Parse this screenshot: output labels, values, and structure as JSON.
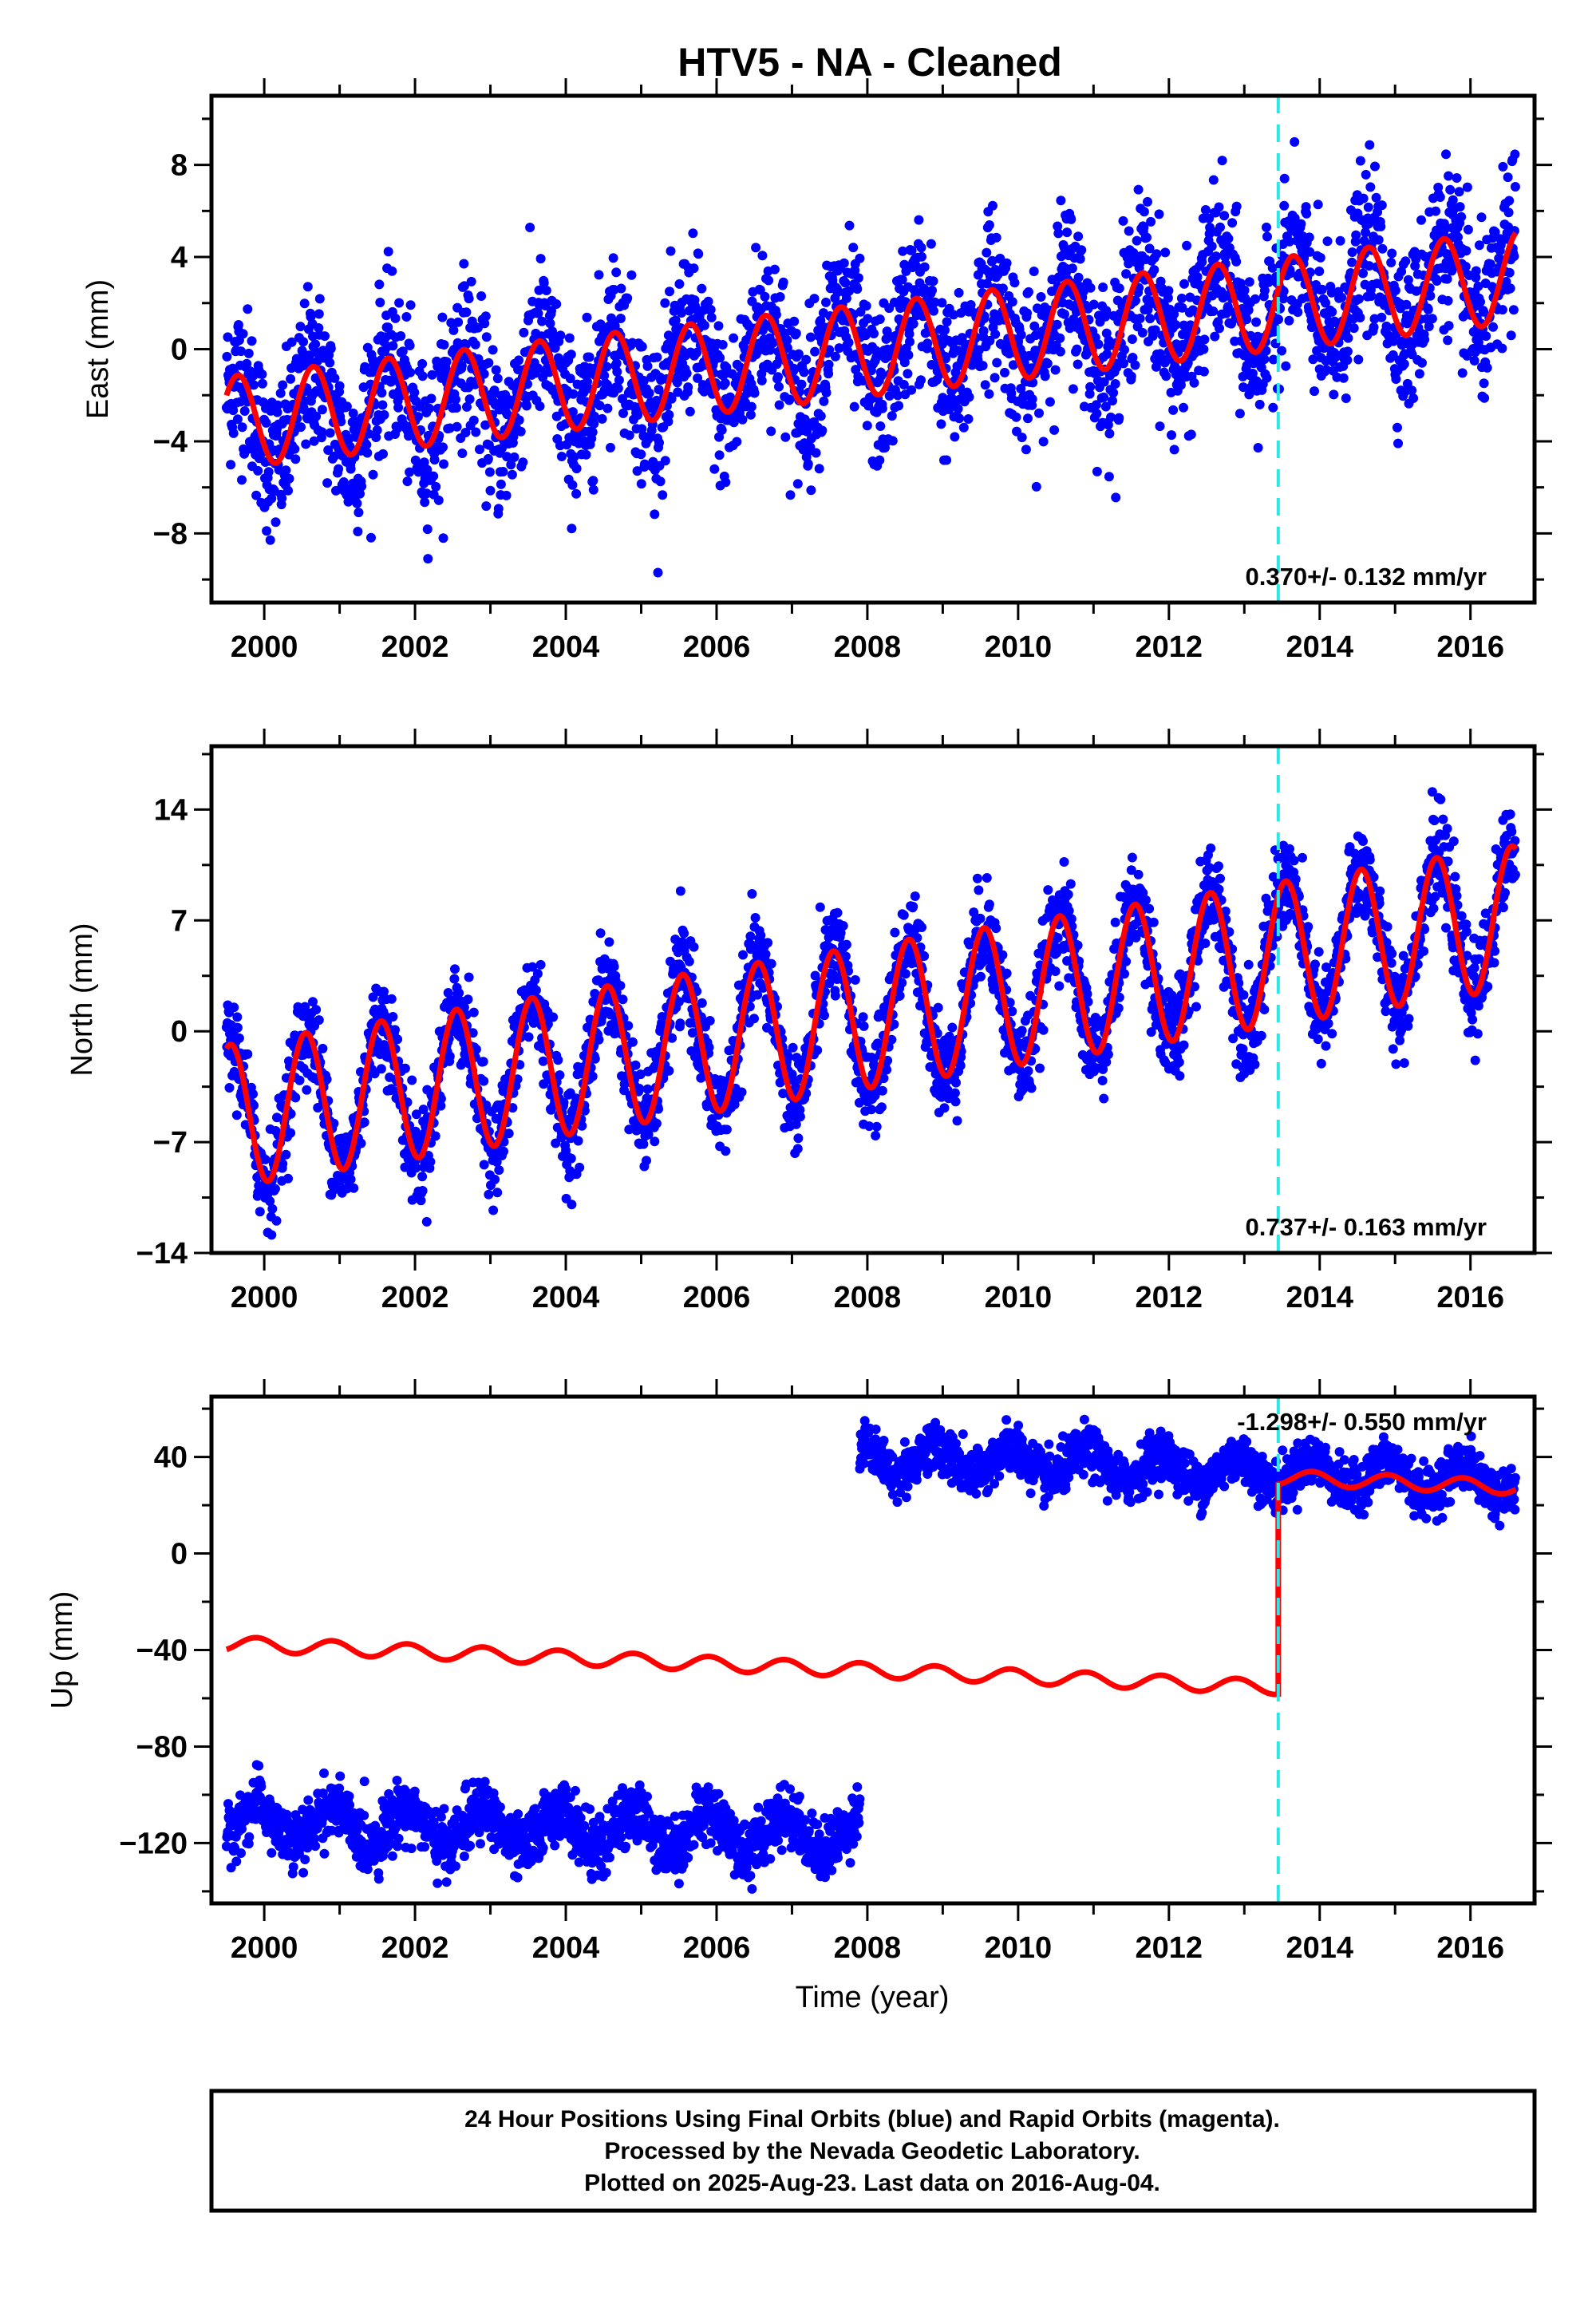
{
  "title": "HTV5  - NA - Cleaned",
  "xlabel": "Time (year)",
  "colors": {
    "dots": "#0000ff",
    "model": "#ff0000",
    "event": "#2ee6e6"
  },
  "footer": {
    "line1": "24 Hour Positions Using Final Orbits (blue) and Rapid Orbits (magenta).",
    "line2": "Processed by the Nevada Geodetic Laboratory.",
    "line3": "Plotted on 2025-Aug-23. Last data on 2016-Aug-04."
  },
  "chart_data": [
    {
      "type": "scatter",
      "component": "east",
      "ylabel": "East (mm)",
      "xlim": [
        1999.3,
        2016.85
      ],
      "ylim": [
        -11,
        11
      ],
      "xticks": [
        2000,
        2002,
        2004,
        2006,
        2008,
        2010,
        2012,
        2014,
        2016
      ],
      "yticks": [
        -8,
        -4,
        0,
        4,
        8
      ],
      "rate_label": "0.370+/- 0.132 mm/yr",
      "rate_position": "bottom-right",
      "event_line_x": 2013.45,
      "data_range": [
        1999.5,
        2016.6
      ],
      "model": {
        "intercept": -3.0,
        "rate_mm_yr": 0.37,
        "seasonal_amplitude": 2.0,
        "peak_phase_year": 0.65,
        "offset_at_event": 0.0
      },
      "scatter_sd": 1.7
    },
    {
      "type": "scatter",
      "component": "north",
      "ylabel": "North (mm)",
      "xlim": [
        1999.3,
        2016.85
      ],
      "ylim": [
        -14,
        18
      ],
      "xticks": [
        2000,
        2002,
        2004,
        2006,
        2008,
        2010,
        2012,
        2014,
        2016
      ],
      "yticks": [
        -14,
        -7,
        0,
        7,
        14
      ],
      "rate_label": "0.737+/- 0.163 mm/yr",
      "rate_position": "bottom-right",
      "event_line_x": 2013.45,
      "data_range": [
        1999.5,
        2016.6
      ],
      "model": {
        "intercept": -5.0,
        "rate_mm_yr": 0.737,
        "seasonal_amplitude": 4.5,
        "peak_phase_year": 0.55,
        "offset_at_event": 0.0
      },
      "scatter_sd": 1.5
    },
    {
      "type": "scatter",
      "component": "up",
      "ylabel": "Up (mm)",
      "xlim": [
        1999.3,
        2016.85
      ],
      "ylim": [
        -145,
        65
      ],
      "xticks": [
        2000,
        2002,
        2004,
        2006,
        2008,
        2010,
        2012,
        2014,
        2016
      ],
      "yticks": [
        -120,
        -80,
        -40,
        0,
        40
      ],
      "rate_label": "-1.298+/- 0.550 mm/yr",
      "rate_position": "top-right",
      "event_line_x": 2013.45,
      "model": {
        "intercept": -38.0,
        "rate_mm_yr": -1.298,
        "seasonal_amplitude": 3.0,
        "peak_phase_year": 0.9,
        "offset_at_event": 87.0
      },
      "data_segments": [
        {
          "range": [
            1999.5,
            2007.9
          ],
          "mean": -112,
          "rate_mm_yr": -0.5,
          "seasonal_amplitude": 8,
          "scatter_sd": 6
        },
        {
          "range": [
            2007.9,
            2016.6
          ],
          "mean": 40,
          "rate_mm_yr": -1.2,
          "seasonal_amplitude": 6,
          "scatter_sd": 5
        }
      ]
    }
  ]
}
